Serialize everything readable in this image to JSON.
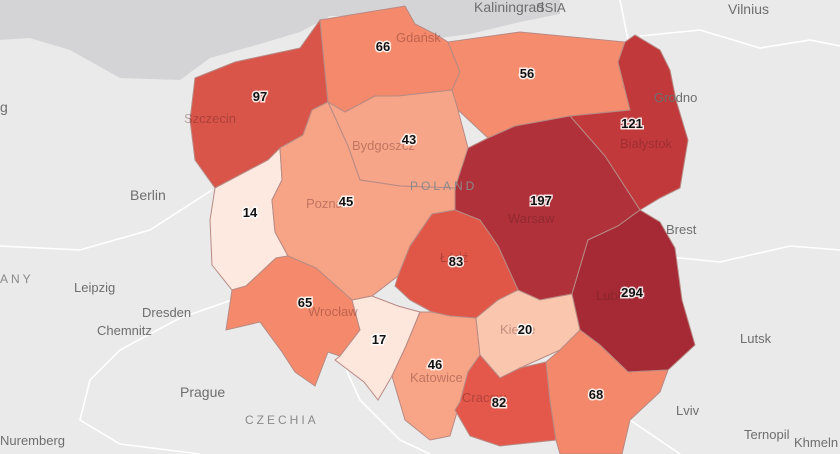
{
  "map": {
    "colors": {
      "water": "#d4d4d6",
      "land": "#eaeaea",
      "border": "#ffffff"
    },
    "places": [
      {
        "id": "kaliningrad",
        "label": "Kaliningrad"
      },
      {
        "id": "vilnius",
        "label": "Vilnius"
      },
      {
        "id": "berlin",
        "label": "Berlin"
      },
      {
        "id": "leipzig",
        "label": "Leipzig"
      },
      {
        "id": "dresden",
        "label": "Dresden"
      },
      {
        "id": "chemnitz",
        "label": "Chemnitz"
      },
      {
        "id": "prague",
        "label": "Prague"
      },
      {
        "id": "nuremberg",
        "label": "Nuremberg"
      },
      {
        "id": "grodno",
        "label": "Grodno"
      },
      {
        "id": "brest",
        "label": "Brest"
      },
      {
        "id": "lutsk",
        "label": "Lutsk"
      },
      {
        "id": "lviv",
        "label": "Lviv"
      },
      {
        "id": "ternopil",
        "label": "Ternopil"
      },
      {
        "id": "khmeln",
        "label": "Khmeln"
      }
    ],
    "edge_labels": [
      {
        "id": "russia",
        "label": "SSIA"
      },
      {
        "id": "germany",
        "label": "ANY"
      },
      {
        "id": "g-left",
        "label": "g"
      }
    ],
    "countries": [
      {
        "id": "poland",
        "label": "POLAND"
      },
      {
        "id": "czechia",
        "label": "CZECHIA"
      }
    ],
    "region_cities": [
      {
        "id": "gdansk",
        "label": "Gdańsk"
      },
      {
        "id": "szczecin",
        "label": "Szczecin"
      },
      {
        "id": "bydgoszcz",
        "label": "Bydgoszcz"
      },
      {
        "id": "poznan",
        "label": "Poznań"
      },
      {
        "id": "warsaw",
        "label": "Warsaw"
      },
      {
        "id": "bialystok",
        "label": "Białystok"
      },
      {
        "id": "lodz",
        "label": "Łódź"
      },
      {
        "id": "wroclaw",
        "label": "Wrocław"
      },
      {
        "id": "lublin",
        "label": "Lublin"
      },
      {
        "id": "kielce",
        "label": "Kielce"
      },
      {
        "id": "katowice",
        "label": "Katowice"
      },
      {
        "id": "cracow",
        "label": "Cracow"
      }
    ],
    "regions": [
      {
        "id": "west-pomeranian",
        "value": 97,
        "color": "#d9554a"
      },
      {
        "id": "pomeranian",
        "value": 66,
        "color": "#f4896b"
      },
      {
        "id": "warmian-masurian",
        "value": 56,
        "color": "#f58c6d"
      },
      {
        "id": "kuyavian-pomeranian",
        "value": 43,
        "color": "#f7a588"
      },
      {
        "id": "podlaskie",
        "value": 121,
        "color": "#c2393b"
      },
      {
        "id": "lubusz",
        "value": 14,
        "color": "#fde9e0"
      },
      {
        "id": "greater-poland",
        "value": 45,
        "color": "#f7a386"
      },
      {
        "id": "masovian",
        "value": 197,
        "color": "#b0313a"
      },
      {
        "id": "lodz",
        "value": 83,
        "color": "#e05748"
      },
      {
        "id": "lower-silesian",
        "value": 65,
        "color": "#f48a6b"
      },
      {
        "id": "opole",
        "value": 17,
        "color": "#fde6dc"
      },
      {
        "id": "silesian",
        "value": 46,
        "color": "#f8a487"
      },
      {
        "id": "swietokrzyskie",
        "value": 20,
        "color": "#fbc6ae"
      },
      {
        "id": "lublin",
        "value": 294,
        "color": "#a52a35"
      },
      {
        "id": "lesser-poland",
        "value": 82,
        "color": "#e3584a"
      },
      {
        "id": "subcarpathian",
        "value": 68,
        "color": "#f3886a"
      }
    ]
  }
}
